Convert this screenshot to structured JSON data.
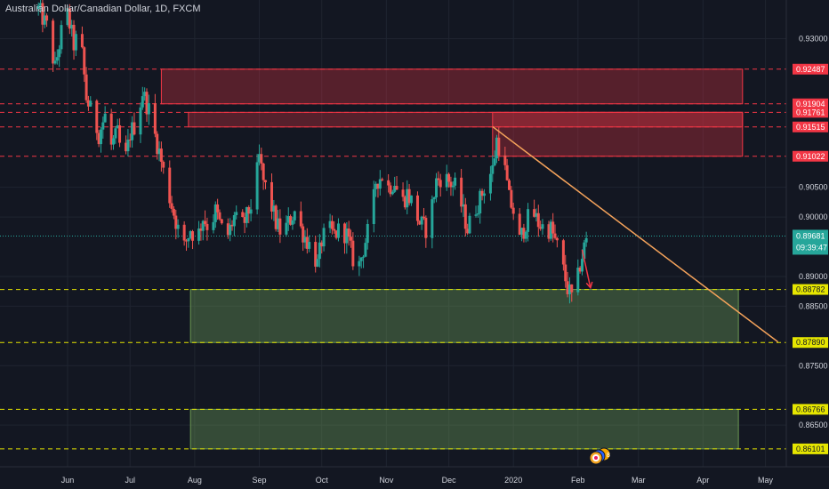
{
  "title": "Australian Dollar/Canadian Dollar, 1D, FXCM",
  "chart_data": {
    "type": "candlestick",
    "title": "Australian Dollar/Canadian Dollar, 1D, FXCM",
    "symbol": "AUDCAD",
    "interval": "1D",
    "source": "FXCM",
    "ylim": [
      0.858,
      0.9365
    ],
    "y_ticks": [
      "0.93000",
      "0.90500",
      "0.90000",
      "0.89000",
      "0.88500",
      "0.87500",
      "0.86500"
    ],
    "x_labels": [
      {
        "label": "Jun",
        "t": 0
      },
      {
        "label": "Jul",
        "t": 30
      },
      {
        "label": "Aug",
        "t": 61
      },
      {
        "label": "Sep",
        "t": 92
      },
      {
        "label": "Oct",
        "t": 122
      },
      {
        "label": "Nov",
        "t": 153
      },
      {
        "label": "Dec",
        "t": 183
      },
      {
        "label": "2020",
        "t": 214
      },
      {
        "label": "Feb",
        "t": 245
      },
      {
        "label": "Mar",
        "t": 274
      },
      {
        "label": "Apr",
        "t": 305
      },
      {
        "label": "May",
        "t": 335
      }
    ],
    "price_anchors": [
      [
        -14,
        0.935
      ],
      [
        -10,
        0.932
      ],
      [
        -6,
        0.925
      ],
      [
        -2,
        0.933
      ],
      [
        0,
        0.934
      ],
      [
        3,
        0.929
      ],
      [
        6,
        0.931
      ],
      [
        9,
        0.92
      ],
      [
        12,
        0.917
      ],
      [
        15,
        0.914
      ],
      [
        18,
        0.917
      ],
      [
        21,
        0.912
      ],
      [
        24,
        0.914
      ],
      [
        27,
        0.908
      ],
      [
        30,
        0.914
      ],
      [
        33,
        0.916
      ],
      [
        36,
        0.921
      ],
      [
        39,
        0.918
      ],
      [
        41,
        0.915
      ],
      [
        44,
        0.911
      ],
      [
        47,
        0.906
      ],
      [
        50,
        0.902
      ],
      [
        53,
        0.898
      ],
      [
        56,
        0.895
      ],
      [
        59,
        0.898
      ],
      [
        62,
        0.896
      ],
      [
        65,
        0.9
      ],
      [
        68,
        0.898
      ],
      [
        71,
        0.901
      ],
      [
        74,
        0.898
      ],
      [
        77,
        0.897
      ],
      [
        80,
        0.9
      ],
      [
        83,
        0.898
      ],
      [
        86,
        0.9
      ],
      [
        88,
        0.902
      ],
      [
        90,
        0.905
      ],
      [
        92,
        0.91
      ],
      [
        94,
        0.906
      ],
      [
        97,
        0.903
      ],
      [
        100,
        0.899
      ],
      [
        103,
        0.897
      ],
      [
        106,
        0.899
      ],
      [
        109,
        0.901
      ],
      [
        112,
        0.898
      ],
      [
        115,
        0.896
      ],
      [
        118,
        0.894
      ],
      [
        120,
        0.892
      ],
      [
        122,
        0.896
      ],
      [
        125,
        0.898
      ],
      [
        128,
        0.897
      ],
      [
        131,
        0.898
      ],
      [
        134,
        0.897
      ],
      [
        137,
        0.893
      ],
      [
        140,
        0.892
      ],
      [
        143,
        0.896
      ],
      [
        146,
        0.9
      ],
      [
        148,
        0.906
      ],
      [
        151,
        0.907
      ],
      [
        154,
        0.905
      ],
      [
        157,
        0.906
      ],
      [
        160,
        0.902
      ],
      [
        163,
        0.904
      ],
      [
        166,
        0.902
      ],
      [
        169,
        0.899
      ],
      [
        172,
        0.898
      ],
      [
        175,
        0.902
      ],
      [
        177,
        0.906
      ],
      [
        180,
        0.907
      ],
      [
        183,
        0.906
      ],
      [
        186,
        0.905
      ],
      [
        189,
        0.902
      ],
      [
        192,
        0.898
      ],
      [
        195,
        0.901
      ],
      [
        198,
        0.903
      ],
      [
        201,
        0.906
      ],
      [
        204,
        0.908
      ],
      [
        206,
        0.913
      ],
      [
        209,
        0.91
      ],
      [
        212,
        0.903
      ],
      [
        215,
        0.9
      ],
      [
        217,
        0.896
      ],
      [
        220,
        0.899
      ],
      [
        223,
        0.901
      ],
      [
        226,
        0.899
      ],
      [
        229,
        0.898
      ],
      [
        232,
        0.898
      ],
      [
        235,
        0.895
      ],
      [
        238,
        0.891
      ],
      [
        240,
        0.888
      ],
      [
        242,
        0.8865
      ],
      [
        244,
        0.8875
      ],
      [
        246,
        0.892
      ],
      [
        248,
        0.895
      ],
      [
        250,
        0.897
      ],
      [
        251,
        0.8968
      ]
    ],
    "current_price": 0.89681,
    "countdown": "09:39:47",
    "horizontal_levels": [
      {
        "label": "0.92487",
        "price": 0.92487,
        "color": "#f23645"
      },
      {
        "label": "0.91904",
        "price": 0.91904,
        "color": "#f23645"
      },
      {
        "label": "0.91761",
        "price": 0.91761,
        "color": "#f23645"
      },
      {
        "label": "0.91515",
        "price": 0.91515,
        "color": "#f23645"
      },
      {
        "label": "0.91022",
        "price": 0.91022,
        "color": "#f23645"
      },
      {
        "label": "0.88782",
        "price": 0.88782,
        "color": "#e6e600"
      },
      {
        "label": "0.87890",
        "price": 0.8789,
        "color": "#e6e600"
      },
      {
        "label": "0.86766",
        "price": 0.86766,
        "color": "#e6e600"
      },
      {
        "label": "0.86101",
        "price": 0.86101,
        "color": "#e6e600"
      }
    ],
    "zones": [
      {
        "type": "resistance",
        "t_start": 45,
        "t_end": 324,
        "top": 0.92487,
        "bottom": 0.91904
      },
      {
        "type": "resistance",
        "t_start": 58,
        "t_end": 324,
        "top": 0.91761,
        "bottom": 0.91515
      },
      {
        "type": "resistance",
        "t_start": 204,
        "t_end": 324,
        "top": 0.91761,
        "bottom": 0.91022
      },
      {
        "type": "support",
        "t_start": 59,
        "t_end": 322,
        "top": 0.88782,
        "bottom": 0.8789
      },
      {
        "type": "support",
        "t_start": 59,
        "t_end": 322,
        "top": 0.86766,
        "bottom": 0.86101
      }
    ],
    "trendline": {
      "t1": 204,
      "p1": 0.9152,
      "t2": 341,
      "p2": 0.879
    },
    "arrow": {
      "t1": 247,
      "p1": 0.8945,
      "t2": 251,
      "p2": 0.8881
    },
    "colors": {
      "background": "#131722",
      "up": "#26a69a",
      "down": "#ef5350",
      "grid": "#1f2430",
      "resistance_line": "#f23645",
      "support_line": "#e6e600",
      "trendline": "#f5a35b",
      "arrow": "#f23645",
      "current_price": "#26a69a"
    }
  }
}
